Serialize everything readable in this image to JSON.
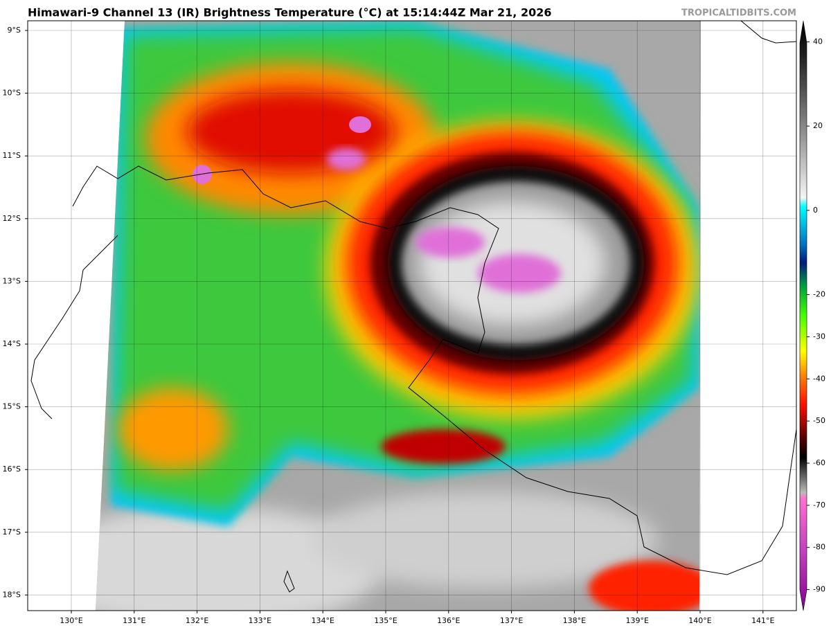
{
  "header": {
    "title": "Himawari-9 Channel 13 (IR) Brightness Temperature (°C) at 15:14:44Z Mar 21, 2026",
    "watermark": "TROPICALTIDBITS.COM"
  },
  "map": {
    "lat_ticks": [
      {
        "value": -9,
        "label": "9°S"
      },
      {
        "value": -10,
        "label": "10°S"
      },
      {
        "value": -11,
        "label": "11°S"
      },
      {
        "value": -12,
        "label": "12°S"
      },
      {
        "value": -13,
        "label": "13°S"
      },
      {
        "value": -14,
        "label": "14°S"
      },
      {
        "value": -15,
        "label": "15°S"
      },
      {
        "value": -16,
        "label": "16°S"
      },
      {
        "value": -17,
        "label": "17°S"
      },
      {
        "value": -18,
        "label": "18°S"
      }
    ],
    "lon_ticks": [
      {
        "value": 130,
        "label": "130°E"
      },
      {
        "value": 131,
        "label": "131°E"
      },
      {
        "value": 132,
        "label": "132°E"
      },
      {
        "value": 133,
        "label": "133°E"
      },
      {
        "value": 134,
        "label": "134°E"
      },
      {
        "value": 135,
        "label": "135°E"
      },
      {
        "value": 136,
        "label": "136°E"
      },
      {
        "value": 137,
        "label": "137°E"
      },
      {
        "value": 138,
        "label": "138°E"
      },
      {
        "value": 139,
        "label": "139°E"
      },
      {
        "value": 140,
        "label": "140°E"
      },
      {
        "value": 141,
        "label": "141°E"
      }
    ]
  },
  "colorbar": {
    "range": [
      -95,
      45
    ],
    "ticks": [
      40,
      20,
      0,
      -20,
      -30,
      -40,
      -50,
      -60,
      -70,
      -80,
      -90
    ]
  }
}
